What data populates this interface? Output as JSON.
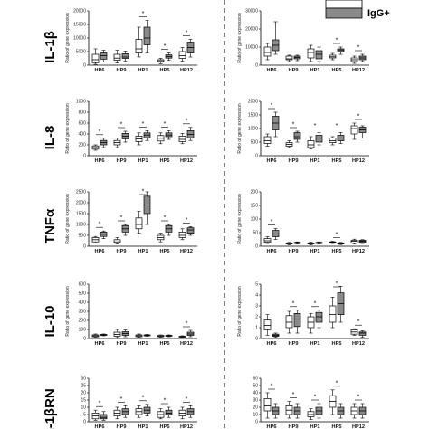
{
  "legend": {
    "label": "IgG+",
    "colors": {
      "neg": "#ffffff",
      "pos": "#8a8a8a"
    }
  },
  "row_labels": [
    "IL-1β",
    "IL-8",
    "TNFα",
    "IL-10",
    "IL-1βRN"
  ],
  "chart_data": [
    {
      "type": "box",
      "row": 0,
      "col": 0,
      "ylabel": "Ratio of gene expression",
      "ylim": [
        0,
        20000
      ],
      "yticks": [
        0,
        5000,
        10000,
        15000,
        20000
      ],
      "categories": [
        "HP6",
        "HP9",
        "HP1",
        "HP5",
        "HP12"
      ],
      "stars": [
        false,
        false,
        true,
        true,
        true
      ],
      "boxes": [
        [
          [
            300,
            900,
            2000,
            4000,
            6000
          ],
          [
            1200,
            2200,
            3500,
            4500,
            5500
          ]
        ],
        [
          [
            800,
            1800,
            2600,
            4000,
            5500
          ],
          [
            1500,
            2500,
            3000,
            4200,
            5200
          ]
        ],
        [
          [
            3000,
            4500,
            6000,
            9500,
            14000
          ],
          [
            4500,
            7500,
            10000,
            14000,
            16500
          ]
        ],
        [
          [
            500,
            1200,
            1600,
            2000,
            2500
          ],
          [
            1800,
            2600,
            3200,
            3800,
            4500
          ]
        ],
        [
          [
            1500,
            2500,
            3500,
            5000,
            6500
          ],
          [
            3000,
            4500,
            6500,
            8500,
            9500
          ]
        ]
      ]
    },
    {
      "type": "box",
      "row": 0,
      "col": 1,
      "ylabel": "Ratio of gene expression",
      "ylim": [
        0,
        30000
      ],
      "yticks": [
        0,
        10000,
        20000,
        30000
      ],
      "categories": [
        "HP6",
        "HP9",
        "HP1",
        "HP5",
        "HP12"
      ],
      "stars": [
        false,
        false,
        false,
        true,
        true
      ],
      "boxes": [
        [
          [
            3000,
            5000,
            7000,
            10000,
            12000
          ],
          [
            6000,
            8000,
            11000,
            14000,
            24000
          ]
        ],
        [
          [
            2000,
            3000,
            3500,
            5000,
            5500
          ],
          [
            2500,
            3500,
            4200,
            5000,
            5500
          ]
        ],
        [
          [
            2000,
            4000,
            7000,
            9000,
            11000
          ],
          [
            2000,
            3500,
            6000,
            8000,
            10000
          ]
        ],
        [
          [
            3000,
            4000,
            4600,
            5500,
            6500
          ],
          [
            6000,
            7500,
            8400,
            9000,
            10000
          ]
        ],
        [
          [
            1000,
            2000,
            3000,
            4000,
            5000
          ],
          [
            2000,
            3000,
            4000,
            5000,
            6000
          ]
        ]
      ]
    },
    {
      "type": "box",
      "row": 1,
      "col": 0,
      "ylabel": "Ratio of gene expression",
      "ylim": [
        0,
        1000
      ],
      "yticks": [
        0,
        200,
        400,
        600,
        800,
        1000
      ],
      "categories": [
        "HP6",
        "HP9",
        "HP1",
        "HP5",
        "HP12"
      ],
      "stars": [
        true,
        true,
        true,
        true,
        true
      ],
      "boxes": [
        [
          [
            100,
            120,
            150,
            180,
            200
          ],
          [
            150,
            200,
            240,
            280,
            320
          ]
        ],
        [
          [
            150,
            200,
            240,
            280,
            320
          ],
          [
            250,
            310,
            360,
            410,
            450
          ]
        ],
        [
          [
            200,
            260,
            310,
            360,
            420
          ],
          [
            280,
            330,
            380,
            420,
            460
          ]
        ],
        [
          [
            220,
            270,
            320,
            370,
            420
          ],
          [
            300,
            350,
            380,
            420,
            460
          ]
        ],
        [
          [
            220,
            260,
            300,
            360,
            410
          ],
          [
            280,
            330,
            390,
            460,
            520
          ]
        ]
      ]
    },
    {
      "type": "box",
      "row": 1,
      "col": 1,
      "ylabel": "Ratio of gene expression",
      "ylim": [
        0,
        2000
      ],
      "yticks": [
        0,
        500,
        1000,
        1500,
        2000
      ],
      "categories": [
        "HP6",
        "HP9",
        "HP1",
        "HP5",
        "HP12"
      ],
      "stars": [
        true,
        true,
        true,
        true,
        true
      ],
      "boxes": [
        [
          [
            350,
            450,
            550,
            700,
            800
          ],
          [
            700,
            950,
            1200,
            1450,
            1600
          ]
        ],
        [
          [
            300,
            350,
            420,
            480,
            550
          ],
          [
            500,
            600,
            700,
            850,
            900
          ]
        ],
        [
          [
            250,
            300,
            400,
            550,
            700
          ],
          [
            400,
            500,
            650,
            750,
            850
          ]
        ],
        [
          [
            400,
            480,
            550,
            650,
            700
          ],
          [
            450,
            550,
            650,
            750,
            850
          ]
        ],
        [
          [
            600,
            800,
            1000,
            1100,
            1200
          ],
          [
            650,
            850,
            950,
            1050,
            1100
          ]
        ]
      ]
    },
    {
      "type": "box",
      "row": 2,
      "col": 0,
      "ylabel": "Ratio of gene expression",
      "ylim": [
        0,
        2500
      ],
      "yticks": [
        0,
        500,
        1000,
        1500,
        2000,
        2500
      ],
      "categories": [
        "HP6",
        "HP9",
        "HP1",
        "HP5",
        "HP12"
      ],
      "stars": [
        true,
        true,
        true,
        true,
        true
      ],
      "boxes": [
        [
          [
            150,
            200,
            300,
            400,
            450
          ],
          [
            350,
            450,
            550,
            650,
            700
          ]
        ],
        [
          [
            100,
            150,
            200,
            300,
            400
          ],
          [
            500,
            650,
            800,
            950,
            1000
          ]
        ],
        [
          [
            600,
            800,
            1000,
            1300,
            1600
          ],
          [
            1000,
            1500,
            1900,
            2300,
            2500
          ]
        ],
        [
          [
            200,
            300,
            400,
            500,
            600
          ],
          [
            500,
            650,
            800,
            950,
            1000
          ]
        ],
        [
          [
            300,
            400,
            500,
            650,
            800
          ],
          [
            500,
            600,
            750,
            850,
            900
          ]
        ]
      ]
    },
    {
      "type": "box",
      "row": 2,
      "col": 1,
      "ylabel": "Ratio of gene expression",
      "ylim": [
        0,
        200
      ],
      "yticks": [
        0,
        50,
        100,
        150,
        200
      ],
      "categories": [
        "HP6",
        "HP9",
        "HP1",
        "HP5",
        "HP12"
      ],
      "stars": [
        true,
        false,
        false,
        true,
        false
      ],
      "boxes": [
        [
          [
            10,
            15,
            20,
            28,
            35
          ],
          [
            25,
            35,
            45,
            58,
            65
          ]
        ],
        [
          [
            5,
            8,
            10,
            12,
            14
          ],
          [
            8,
            10,
            12,
            14,
            16
          ]
        ],
        [
          [
            5,
            8,
            10,
            12,
            15
          ],
          [
            8,
            10,
            12,
            14,
            16
          ]
        ],
        [
          [
            10,
            12,
            14,
            16,
            18
          ],
          [
            6,
            8,
            10,
            12,
            14
          ]
        ],
        [
          [
            8,
            12,
            18,
            22,
            26
          ],
          [
            10,
            14,
            18,
            22,
            24
          ]
        ]
      ]
    },
    {
      "type": "box",
      "row": 3,
      "col": 0,
      "ylabel": "Ratio of gene expression",
      "ylim": [
        0,
        600
      ],
      "yticks": [
        0,
        100,
        200,
        300,
        400,
        500,
        600
      ],
      "categories": [
        "HP6",
        "HP9",
        "HP1",
        "HP5",
        "HP12"
      ],
      "stars": [
        false,
        false,
        false,
        false,
        true
      ],
      "boxes": [
        [
          [
            15,
            20,
            30,
            40,
            50
          ],
          [
            30,
            35,
            40,
            45,
            50
          ]
        ],
        [
          [
            10,
            25,
            45,
            70,
            100
          ],
          [
            20,
            35,
            55,
            75,
            95
          ]
        ],
        [
          [
            10,
            20,
            30,
            40,
            50
          ],
          [
            25,
            30,
            35,
            40,
            45
          ]
        ],
        [
          [
            15,
            20,
            25,
            35,
            40
          ],
          [
            20,
            25,
            30,
            35,
            40
          ]
        ],
        [
          [
            10,
            15,
            20,
            25,
            30
          ],
          [
            20,
            35,
            50,
            70,
            90
          ]
        ]
      ]
    },
    {
      "type": "box",
      "row": 3,
      "col": 1,
      "ylabel": "Ratio of gene expression",
      "ylim": [
        0,
        5
      ],
      "yticks": [
        0,
        1,
        2,
        3,
        4,
        5
      ],
      "categories": [
        "HP6",
        "HP9",
        "HP1",
        "HP5",
        "HP12"
      ],
      "stars": [
        false,
        true,
        true,
        true,
        true
      ],
      "boxes": [
        [
          [
            0.3,
            0.8,
            1.2,
            1.7,
            2.2
          ],
          [
            0.1,
            0.2,
            0.3,
            0.4,
            0.5
          ]
        ],
        [
          [
            0.5,
            1.0,
            1.5,
            2.1,
            2.5
          ],
          [
            0.5,
            1.1,
            1.8,
            2.3,
            2.6
          ]
        ],
        [
          [
            0.5,
            1.0,
            1.5,
            2.0,
            2.3
          ],
          [
            1.0,
            1.5,
            2.0,
            2.4,
            2.6
          ]
        ],
        [
          [
            1.0,
            1.5,
            2.2,
            3.0,
            3.8
          ],
          [
            1.5,
            2.2,
            3.2,
            4.2,
            4.8
          ]
        ],
        [
          [
            0.3,
            0.4,
            0.6,
            0.8,
            0.9
          ],
          [
            0.1,
            0.3,
            0.5,
            0.6,
            0.7
          ]
        ]
      ]
    },
    {
      "type": "box",
      "row": 4,
      "col": 0,
      "ylabel": "",
      "ylim": [
        0,
        30
      ],
      "yticks": [
        0,
        5,
        10,
        15,
        20,
        25,
        30
      ],
      "categories": [
        "HP6",
        "HP9",
        "HP1",
        "HP5",
        "HP12"
      ],
      "stars": [
        true,
        true,
        true,
        true,
        true
      ],
      "boxes": [
        [
          [
            1,
            2,
            4,
            6,
            8
          ],
          [
            1,
            2,
            3,
            5,
            7
          ]
        ],
        [
          [
            2,
            4,
            6,
            8,
            10
          ],
          [
            3,
            5,
            7,
            9,
            11
          ]
        ],
        [
          [
            3,
            5,
            7,
            9,
            11
          ],
          [
            4,
            6,
            8,
            10,
            12
          ]
        ],
        [
          [
            2,
            3,
            5,
            7,
            9
          ],
          [
            3,
            5,
            6,
            8,
            10
          ]
        ],
        [
          [
            2,
            4,
            6,
            8,
            10
          ],
          [
            3,
            5,
            7,
            9,
            11
          ]
        ]
      ]
    },
    {
      "type": "box",
      "row": 4,
      "col": 1,
      "ylabel": "",
      "ylim": [
        0,
        60
      ],
      "yticks": [
        0,
        10,
        20,
        30,
        40,
        50,
        60
      ],
      "categories": [
        "HP6",
        "HP9",
        "HP1",
        "HP5",
        "HP12"
      ],
      "stars": [
        true,
        true,
        true,
        true,
        true
      ],
      "boxes": [
        [
          [
            5,
            15,
            22,
            32,
            40
          ],
          [
            5,
            10,
            15,
            20,
            25
          ]
        ],
        [
          [
            5,
            10,
            16,
            22,
            28
          ],
          [
            5,
            10,
            15,
            20,
            25
          ]
        ],
        [
          [
            3,
            7,
            10,
            14,
            18
          ],
          [
            5,
            10,
            15,
            20,
            25
          ]
        ],
        [
          [
            10,
            20,
            28,
            36,
            44
          ],
          [
            5,
            10,
            15,
            20,
            25
          ]
        ],
        [
          [
            5,
            10,
            15,
            20,
            25
          ],
          [
            5,
            10,
            15,
            20,
            25
          ]
        ]
      ]
    }
  ]
}
